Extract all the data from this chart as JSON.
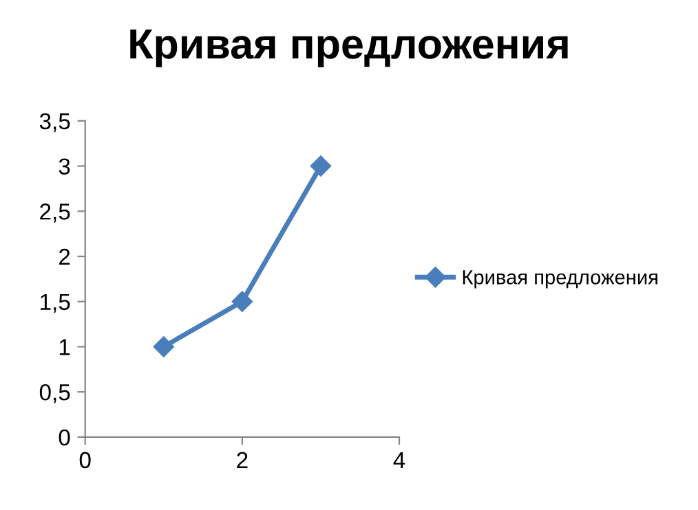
{
  "chart_data": {
    "type": "line",
    "title": "Кривая предложения",
    "x": [
      1,
      2,
      3
    ],
    "series": [
      {
        "name": "Кривая предложения",
        "color": "#4a7ebb",
        "values": [
          1,
          1.5,
          3
        ]
      }
    ],
    "xlim": [
      0,
      4
    ],
    "xticks": [
      0,
      2,
      4
    ],
    "ylim": [
      0,
      3.5
    ],
    "yticks": [
      0,
      {
        "value": 0.5,
        "label": "0,5"
      },
      1,
      {
        "value": 1.5,
        "label": "1,5"
      },
      2,
      {
        "value": 2.5,
        "label": "2,5"
      },
      3,
      {
        "value": 3.5,
        "label": "3,5"
      }
    ],
    "marker": "diamond",
    "grid": false,
    "legend": "right"
  }
}
